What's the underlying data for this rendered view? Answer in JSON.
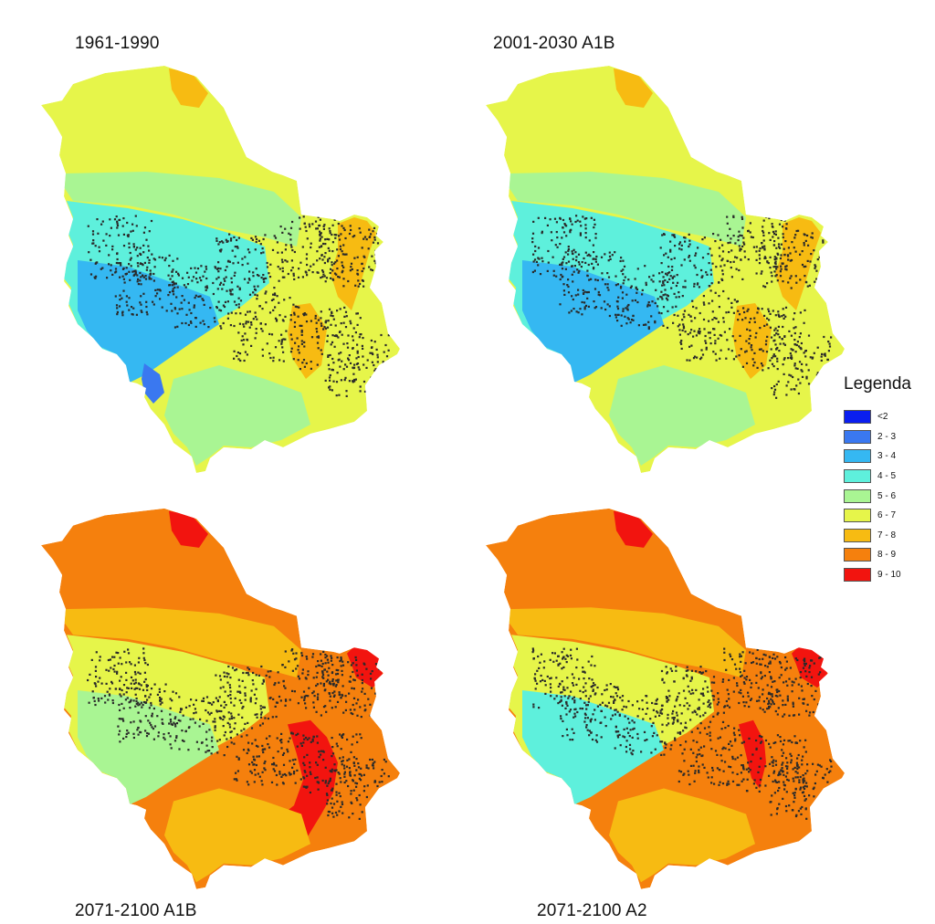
{
  "panels": [
    {
      "id": "p1",
      "title": "1961-1990",
      "base": "#e6f54a",
      "zones": [
        {
          "class": "5 - 6",
          "shape": "band-mid"
        },
        {
          "class": "4 - 5",
          "shape": "west"
        },
        {
          "class": "3 - 4",
          "shape": "southwest"
        },
        {
          "class": "2 - 3",
          "shape": "sw-spot"
        },
        {
          "class": "7 - 8",
          "shape": "ne-spot"
        },
        {
          "class": "7 - 8",
          "shape": "east-strip"
        },
        {
          "class": "5 - 6",
          "shape": "south"
        }
      ]
    },
    {
      "id": "p2",
      "title": "2001-2030 A1B",
      "base": "#e6f54a",
      "zones": [
        {
          "class": "5 - 6",
          "shape": "band-mid"
        },
        {
          "class": "4 - 5",
          "shape": "west"
        },
        {
          "class": "3 - 4",
          "shape": "southwest"
        },
        {
          "class": "7 - 8",
          "shape": "ne-spot"
        },
        {
          "class": "7 - 8",
          "shape": "east-strip"
        },
        {
          "class": "5 - 6",
          "shape": "south"
        }
      ]
    },
    {
      "id": "p3",
      "title": "2071-2100 A1B",
      "base": "#f5800d",
      "zones": [
        {
          "class": "7 - 8",
          "shape": "band-mid"
        },
        {
          "class": "6 - 7",
          "shape": "west"
        },
        {
          "class": "5 - 6",
          "shape": "southwest"
        },
        {
          "class": "9 - 10",
          "shape": "ne-spot"
        },
        {
          "class": "9 - 10",
          "shape": "east-tip"
        },
        {
          "class": "9 - 10",
          "shape": "south-core"
        },
        {
          "class": "7 - 8",
          "shape": "south"
        }
      ]
    },
    {
      "id": "p4",
      "title": "2071-2100 A2",
      "base": "#f5800d",
      "zones": [
        {
          "class": "7 - 8",
          "shape": "band-mid"
        },
        {
          "class": "6 - 7",
          "shape": "west"
        },
        {
          "class": "4 - 5",
          "shape": "southwest"
        },
        {
          "class": "9 - 10",
          "shape": "ne-spot"
        },
        {
          "class": "9 - 10",
          "shape": "east-tip"
        },
        {
          "class": "9 - 10",
          "shape": "south-core-small"
        },
        {
          "class": "7 - 8",
          "shape": "south"
        }
      ]
    }
  ],
  "legend": {
    "title": "Legenda",
    "items": [
      {
        "label": "<2",
        "color": "#0a1ef0"
      },
      {
        "label": "2 - 3",
        "color": "#3a78f0"
      },
      {
        "label": "3 - 4",
        "color": "#35b8f2"
      },
      {
        "label": "4 - 5",
        "color": "#5ef0dc"
      },
      {
        "label": "5 - 6",
        "color": "#a9f593"
      },
      {
        "label": "6 - 7",
        "color": "#e6f54a"
      },
      {
        "label": "7 - 8",
        "color": "#f7bb12"
      },
      {
        "label": "8 - 9",
        "color": "#f5800d"
      },
      {
        "label": "9 - 10",
        "color": "#f2140f"
      }
    ]
  }
}
